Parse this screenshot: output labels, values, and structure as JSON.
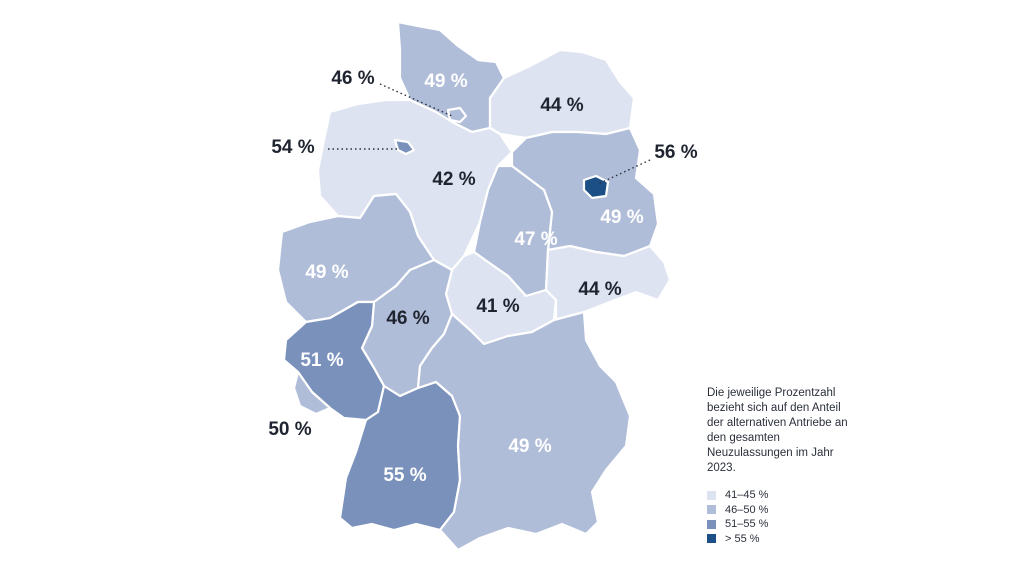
{
  "colors": {
    "c41_45": "#dde3f0",
    "c46_50": "#b0bdd8",
    "c51_55": "#7a91bb",
    "c55plus": "#1c4f86"
  },
  "states": [
    {
      "id": "schleswig-holstein",
      "value": "49 %",
      "cls": "c46_50"
    },
    {
      "id": "hamburg",
      "value": "46 %",
      "cls": "c46_50"
    },
    {
      "id": "mecklenburg-vorpommern",
      "value": "44 %",
      "cls": "c41_45"
    },
    {
      "id": "bremen",
      "value": "54 %",
      "cls": "c51_55"
    },
    {
      "id": "niedersachsen",
      "value": "42 %",
      "cls": "c41_45"
    },
    {
      "id": "berlin",
      "value": "56 %",
      "cls": "c55plus"
    },
    {
      "id": "brandenburg",
      "value": "49 %",
      "cls": "c46_50"
    },
    {
      "id": "sachsen-anhalt",
      "value": "47 %",
      "cls": "c46_50"
    },
    {
      "id": "nordrhein-westfalen",
      "value": "49 %",
      "cls": "c46_50"
    },
    {
      "id": "thueringen",
      "value": "41 %",
      "cls": "c41_45"
    },
    {
      "id": "sachsen",
      "value": "44 %",
      "cls": "c41_45"
    },
    {
      "id": "hessen",
      "value": "46 %",
      "cls": "c46_50"
    },
    {
      "id": "rheinland-pfalz",
      "value": "51 %",
      "cls": "c51_55"
    },
    {
      "id": "saarland",
      "value": "50 %",
      "cls": "c46_50"
    },
    {
      "id": "baden-wuerttemberg",
      "value": "55 %",
      "cls": "c51_55"
    },
    {
      "id": "bayern",
      "value": "49 %",
      "cls": "c46_50"
    }
  ],
  "note": "Die jeweilige Prozentzahl bezieht sich auf den Anteil der alternativen Antriebe an den gesamten Neuzulassungen im Jahr 2023.",
  "legend": [
    {
      "label": "41–45 %",
      "cls": "c41_45"
    },
    {
      "label": "46–50 %",
      "cls": "c46_50"
    },
    {
      "label": "51–55 %",
      "cls": "c51_55"
    },
    {
      "label": "> 55 %",
      "cls": "c55plus"
    }
  ]
}
